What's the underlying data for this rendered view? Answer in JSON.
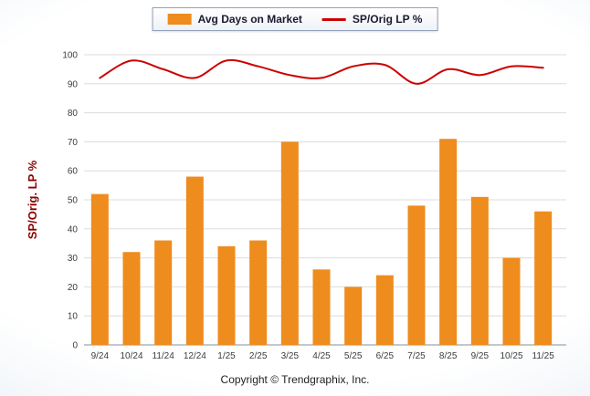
{
  "page": {
    "footer_text": "Copyright © Trendgraphix, Inc."
  },
  "chart_data": {
    "type": "bar+line",
    "title": "",
    "categories": [
      "9/24",
      "10/24",
      "11/24",
      "12/24",
      "1/25",
      "2/25",
      "3/25",
      "4/25",
      "5/25",
      "6/25",
      "7/25",
      "8/25",
      "9/25",
      "10/25",
      "11/25"
    ],
    "series": [
      {
        "name": "Avg Days on Market",
        "type": "bar",
        "color": "#EE8C1E",
        "values": [
          52,
          32,
          36,
          58,
          34,
          36,
          70,
          26,
          20,
          24,
          48,
          71,
          51,
          30,
          46
        ]
      },
      {
        "name": "SP/Orig LP %",
        "type": "line",
        "color": "#CC0000",
        "values": [
          92,
          98,
          95,
          92,
          98,
          96,
          93,
          92,
          96,
          96.5,
          90,
          95,
          93,
          96,
          95.5
        ]
      }
    ],
    "xlabel": "",
    "ylabel": "SP/Orig. LP %",
    "ylim": [
      0,
      100
    ],
    "ytick_step": 10,
    "grid": true,
    "legend_position": "top-center",
    "axis_title_color": "#8B0000",
    "tick_label_color": "#3c3c3c",
    "grid_color": "#DCDCDC",
    "axis_line_color": "#8a8f98"
  }
}
